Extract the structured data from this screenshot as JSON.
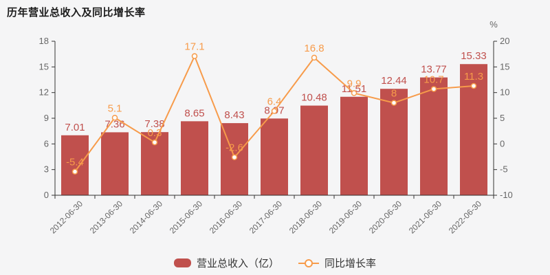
{
  "title": "历年营业总收入及同比增长率",
  "chart_data": {
    "type": "bar+line",
    "categories": [
      "2012-06-30",
      "2013-06-30",
      "2014-06-30",
      "2015-06-30",
      "2016-06-30",
      "2017-06-30",
      "2018-06-30",
      "2019-06-30",
      "2020-06-30",
      "2021-06-30",
      "2022-06-30"
    ],
    "series": [
      {
        "name": "营业总收入（亿）",
        "type": "bar",
        "axis": "left",
        "values": [
          7.01,
          7.36,
          7.38,
          8.65,
          8.43,
          8.97,
          10.48,
          11.51,
          12.44,
          13.77,
          15.33
        ]
      },
      {
        "name": "同比增长率",
        "type": "line",
        "axis": "right",
        "values": [
          -5.4,
          5.1,
          0.3,
          17.1,
          -2.6,
          6.4,
          16.8,
          9.9,
          8,
          10.7,
          11.3
        ]
      }
    ],
    "left_axis": {
      "min": 0,
      "max": 18,
      "step": 3
    },
    "right_axis": {
      "min": -10,
      "max": 20,
      "step": 5,
      "unit": "%"
    },
    "grid_lines": false,
    "legend_position": "bottom",
    "x_label_rotation": 45
  },
  "colors": {
    "background": "#f5f5f6",
    "bar": "#c0504d",
    "bar_label": "#c0504d",
    "line": "#f79b4a",
    "line_label": "#f79b4a",
    "marker_fill": "#fdfdfd",
    "axis_line": "#333333",
    "axis_text": "#666666",
    "title_text": "#1c1c1c",
    "legend_text": "#333333"
  }
}
